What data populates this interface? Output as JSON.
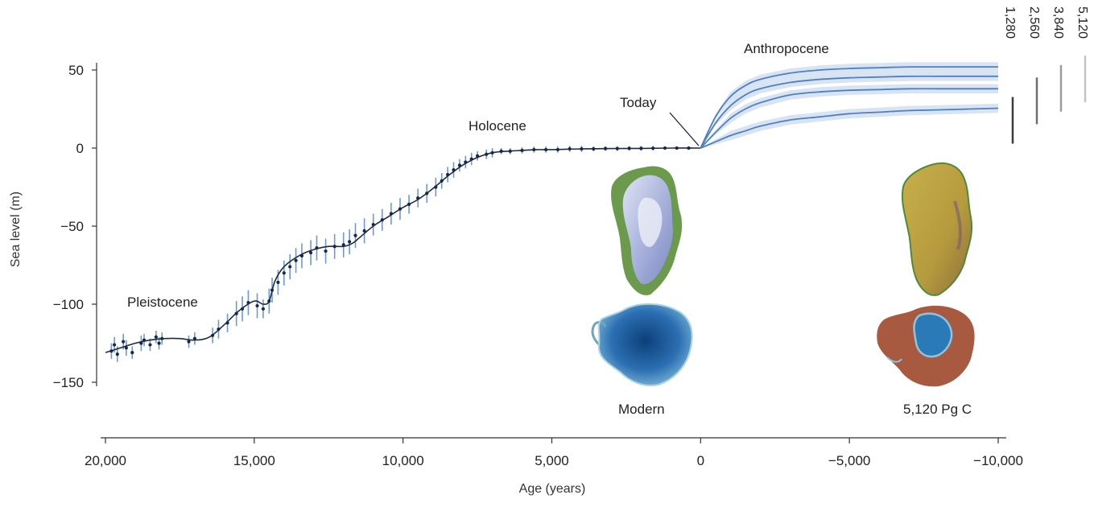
{
  "chart_data": {
    "type": "line",
    "xlabel": "Age (years)",
    "ylabel": "Sea level (m)",
    "xlim": [
      20000,
      -10000
    ],
    "ylim": [
      -150,
      50
    ],
    "x_ticks": [
      20000,
      15000,
      10000,
      5000,
      0,
      -5000,
      -10000
    ],
    "x_tick_labels": [
      "20,000",
      "15,000",
      "10,000",
      "5,000",
      "0",
      "−5,000",
      "−10,000"
    ],
    "y_ticks": [
      50,
      0,
      -50,
      -100,
      -150
    ],
    "y_tick_labels": [
      "50",
      "0",
      "−50",
      "−100",
      "−150"
    ],
    "annotations": {
      "pleistocene": "Pleistocene",
      "holocene": "Holocene",
      "today": "Today",
      "anthropocene": "Anthropocene",
      "modern": "Modern",
      "future_map": "5,120 Pg C"
    },
    "reconstruction": {
      "x": [
        20000,
        19500,
        19000,
        18500,
        18000,
        17500,
        17000,
        16500,
        16000,
        15500,
        15000,
        14700,
        14500,
        14300,
        14000,
        13500,
        13000,
        12500,
        12000,
        11700,
        11500,
        11000,
        10500,
        10000,
        9500,
        9000,
        8500,
        8000,
        7500,
        7000,
        6500,
        6000,
        5500,
        5000,
        4000,
        3000,
        2000,
        1000,
        0
      ],
      "y": [
        -131,
        -128,
        -125,
        -123,
        -122,
        -122,
        -123,
        -121,
        -113,
        -104,
        -98,
        -100,
        -98,
        -85,
        -76,
        -69,
        -65,
        -63,
        -63,
        -61,
        -58,
        -50,
        -44,
        -38,
        -33,
        -26,
        -18,
        -11,
        -6,
        -3,
        -2,
        -1.5,
        -1,
        -1,
        -0.5,
        -0.3,
        -0.2,
        0,
        0
      ]
    },
    "observations": [
      {
        "x": 19800,
        "y": -130,
        "err": 5
      },
      {
        "x": 19700,
        "y": -126,
        "err": 5
      },
      {
        "x": 19600,
        "y": -132,
        "err": 5
      },
      {
        "x": 19400,
        "y": -124,
        "err": 5
      },
      {
        "x": 19300,
        "y": -128,
        "err": 5
      },
      {
        "x": 19100,
        "y": -131,
        "err": 4
      },
      {
        "x": 18800,
        "y": -125,
        "err": 5
      },
      {
        "x": 18700,
        "y": -123,
        "err": 4
      },
      {
        "x": 18500,
        "y": -126,
        "err": 4
      },
      {
        "x": 18300,
        "y": -121,
        "err": 4
      },
      {
        "x": 18200,
        "y": -125,
        "err": 4
      },
      {
        "x": 18100,
        "y": -122,
        "err": 4
      },
      {
        "x": 17200,
        "y": -124,
        "err": 4
      },
      {
        "x": 17000,
        "y": -122,
        "err": 4
      },
      {
        "x": 16400,
        "y": -120,
        "err": 5
      },
      {
        "x": 16200,
        "y": -116,
        "err": 6
      },
      {
        "x": 15900,
        "y": -112,
        "err": 6
      },
      {
        "x": 15600,
        "y": -106,
        "err": 8
      },
      {
        "x": 15400,
        "y": -103,
        "err": 8
      },
      {
        "x": 15200,
        "y": -99,
        "err": 8
      },
      {
        "x": 14900,
        "y": -101,
        "err": 8
      },
      {
        "x": 14700,
        "y": -103,
        "err": 6
      },
      {
        "x": 14500,
        "y": -98,
        "err": 8
      },
      {
        "x": 14400,
        "y": -91,
        "err": 8
      },
      {
        "x": 14200,
        "y": -86,
        "err": 8
      },
      {
        "x": 14000,
        "y": -80,
        "err": 8
      },
      {
        "x": 13800,
        "y": -76,
        "err": 8
      },
      {
        "x": 13600,
        "y": -72,
        "err": 8
      },
      {
        "x": 13400,
        "y": -69,
        "err": 8
      },
      {
        "x": 13100,
        "y": -67,
        "err": 8
      },
      {
        "x": 12900,
        "y": -64,
        "err": 8
      },
      {
        "x": 12600,
        "y": -66,
        "err": 8
      },
      {
        "x": 12300,
        "y": -63,
        "err": 8
      },
      {
        "x": 12000,
        "y": -62,
        "err": 8
      },
      {
        "x": 11800,
        "y": -60,
        "err": 8
      },
      {
        "x": 11600,
        "y": -56,
        "err": 8
      },
      {
        "x": 11300,
        "y": -53,
        "err": 8
      },
      {
        "x": 11000,
        "y": -49,
        "err": 7
      },
      {
        "x": 10700,
        "y": -46,
        "err": 7
      },
      {
        "x": 10400,
        "y": -42,
        "err": 7
      },
      {
        "x": 10100,
        "y": -39,
        "err": 7
      },
      {
        "x": 9800,
        "y": -36,
        "err": 6
      },
      {
        "x": 9500,
        "y": -32,
        "err": 6
      },
      {
        "x": 9200,
        "y": -29,
        "err": 6
      },
      {
        "x": 8900,
        "y": -25,
        "err": 6
      },
      {
        "x": 8700,
        "y": -21,
        "err": 5
      },
      {
        "x": 8500,
        "y": -17,
        "err": 5
      },
      {
        "x": 8300,
        "y": -14,
        "err": 5
      },
      {
        "x": 8100,
        "y": -11,
        "err": 4
      },
      {
        "x": 7900,
        "y": -9,
        "err": 4
      },
      {
        "x": 7700,
        "y": -7,
        "err": 4
      },
      {
        "x": 7500,
        "y": -5,
        "err": 3
      },
      {
        "x": 7200,
        "y": -4,
        "err": 3
      },
      {
        "x": 7000,
        "y": -3,
        "err": 3
      },
      {
        "x": 6700,
        "y": -2,
        "err": 2
      },
      {
        "x": 6400,
        "y": -2,
        "err": 2
      },
      {
        "x": 6000,
        "y": -1.5,
        "err": 2
      },
      {
        "x": 5600,
        "y": -1,
        "err": 2
      },
      {
        "x": 5200,
        "y": -1,
        "err": 2
      },
      {
        "x": 4800,
        "y": -1,
        "err": 2
      },
      {
        "x": 4400,
        "y": -0.5,
        "err": 2
      },
      {
        "x": 4000,
        "y": -0.5,
        "err": 2
      },
      {
        "x": 3600,
        "y": -0.5,
        "err": 1.5
      },
      {
        "x": 3200,
        "y": -0.3,
        "err": 1.5
      },
      {
        "x": 2800,
        "y": -0.3,
        "err": 1.5
      },
      {
        "x": 2400,
        "y": -0.2,
        "err": 1.5
      },
      {
        "x": 2000,
        "y": -0.2,
        "err": 1.5
      },
      {
        "x": 1600,
        "y": -0.1,
        "err": 1.5
      },
      {
        "x": 1200,
        "y": 0,
        "err": 1
      },
      {
        "x": 800,
        "y": 0,
        "err": 1
      },
      {
        "x": 400,
        "y": 0,
        "err": 1
      }
    ],
    "projections": {
      "x": [
        0,
        -500,
        -1000,
        -1500,
        -2000,
        -3000,
        -4000,
        -5000,
        -6000,
        -7000,
        -8000,
        -9000,
        -10000
      ],
      "series": [
        {
          "name": "5,120",
          "values": [
            0,
            20,
            33,
            40,
            44,
            48,
            50,
            51,
            51.5,
            52,
            52,
            52,
            52
          ],
          "band": 3,
          "color": "#c4c4c4"
        },
        {
          "name": "3,840",
          "values": [
            0,
            16,
            27,
            34,
            38,
            42,
            44,
            45,
            45.5,
            46,
            46,
            46,
            46
          ],
          "band": 3,
          "color": "#9c9c9c"
        },
        {
          "name": "2,560",
          "values": [
            0,
            10,
            19,
            25,
            29,
            34,
            36,
            37,
            37.5,
            38,
            38,
            38,
            38
          ],
          "band": 3,
          "color": "#6e6e6e"
        },
        {
          "name": "1,280",
          "values": [
            0,
            4,
            8,
            11,
            14,
            18,
            20,
            22,
            23,
            24,
            24.5,
            25,
            25.5
          ],
          "band": 3,
          "color": "#3c3c3c"
        }
      ]
    }
  }
}
